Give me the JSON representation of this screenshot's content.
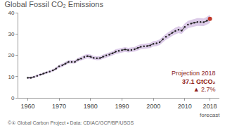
{
  "chart_data": {
    "type": "line",
    "title": "Global Fossil CO₂ Emissions",
    "source": "©① Global Carbon Project • Data: CDIAC/GCP/BP/USGS",
    "annotations": [
      "Projection 2018",
      "37.1 GtCO₂",
      "▲ 2.7%"
    ],
    "x_note": "forecast",
    "x": [
      1960,
      1961,
      1962,
      1963,
      1964,
      1965,
      1966,
      1967,
      1968,
      1969,
      1970,
      1971,
      1972,
      1973,
      1974,
      1975,
      1976,
      1977,
      1978,
      1979,
      1980,
      1981,
      1982,
      1983,
      1984,
      1985,
      1986,
      1987,
      1988,
      1989,
      1990,
      1991,
      1992,
      1993,
      1994,
      1995,
      1996,
      1997,
      1998,
      1999,
      2000,
      2001,
      2002,
      2003,
      2004,
      2005,
      2006,
      2007,
      2008,
      2009,
      2010,
      2011,
      2012,
      2013,
      2014,
      2015,
      2016,
      2017,
      2018
    ],
    "series": [
      {
        "color": "#222222",
        "line_style": "dash",
        "marker": "circle",
        "colors": [
          "#222222",
          "#222222",
          "#222222",
          "#222222",
          "#222222",
          "#222222",
          "#222222",
          "#222222",
          "#222222",
          "#222222",
          "#222222",
          "#222222",
          "#222222",
          "#222222",
          "#222222",
          "#222222",
          "#222222",
          "#222222",
          "#222222",
          "#222222",
          "#222222",
          "#222222",
          "#222222",
          "#222222",
          "#222222",
          "#222222",
          "#222222",
          "#222222",
          "#222222",
          "#222222",
          "#222222",
          "#222222",
          "#222222",
          "#222222",
          "#222222",
          "#222222",
          "#222222",
          "#222222",
          "#222222",
          "#222222",
          "#222222",
          "#222222",
          "#222222",
          "#222222",
          "#222222",
          "#222222",
          "#222222",
          "#222222",
          "#222222",
          "#222222",
          "#222222",
          "#222222",
          "#222222",
          "#222222",
          "#222222",
          "#222222",
          "#222222",
          "#222222",
          "#c0392b"
        ],
        "values": [
          9.4,
          9.4,
          9.8,
          10.3,
          10.9,
          11.4,
          11.9,
          12.3,
          12.9,
          13.7,
          14.8,
          15.3,
          16.0,
          16.9,
          16.9,
          16.9,
          17.9,
          18.4,
          19.2,
          19.6,
          19.3,
          18.8,
          18.6,
          18.7,
          19.3,
          19.9,
          20.3,
          20.9,
          21.7,
          22.1,
          22.4,
          22.7,
          22.4,
          22.5,
          22.8,
          23.4,
          24.0,
          24.2,
          24.3,
          24.6,
          25.4,
          25.6,
          26.1,
          27.5,
          28.7,
          29.6,
          30.6,
          31.4,
          32.0,
          31.6,
          33.3,
          34.4,
          34.9,
          35.3,
          35.6,
          35.6,
          35.5,
          36.2,
          37.1
        ],
        "error": [
          0.5,
          0.5,
          0.5,
          0.5,
          0.5,
          0.6,
          0.6,
          0.6,
          0.6,
          0.7,
          0.7,
          0.8,
          0.8,
          0.8,
          0.8,
          0.8,
          0.9,
          0.9,
          1.0,
          1.0,
          1.0,
          0.9,
          0.9,
          0.9,
          1.0,
          1.0,
          1.0,
          1.0,
          1.1,
          1.1,
          1.1,
          1.1,
          1.1,
          1.1,
          1.1,
          1.2,
          1.2,
          1.2,
          1.2,
          1.2,
          1.3,
          1.3,
          1.3,
          1.4,
          1.4,
          1.5,
          1.5,
          1.6,
          1.6,
          1.6,
          1.7,
          1.7,
          1.7,
          1.8,
          1.8,
          1.8,
          1.8,
          1.8,
          1.9
        ],
        "error_color": "#dccbe8"
      }
    ],
    "xlim": [
      1957,
      2021
    ],
    "xticks": [
      1960,
      1970,
      1980,
      1990,
      2000,
      2010,
      2018
    ],
    "ylim": [
      0,
      40
    ],
    "yticks": [
      0,
      10,
      20,
      30,
      40
    ],
    "grid": false
  }
}
